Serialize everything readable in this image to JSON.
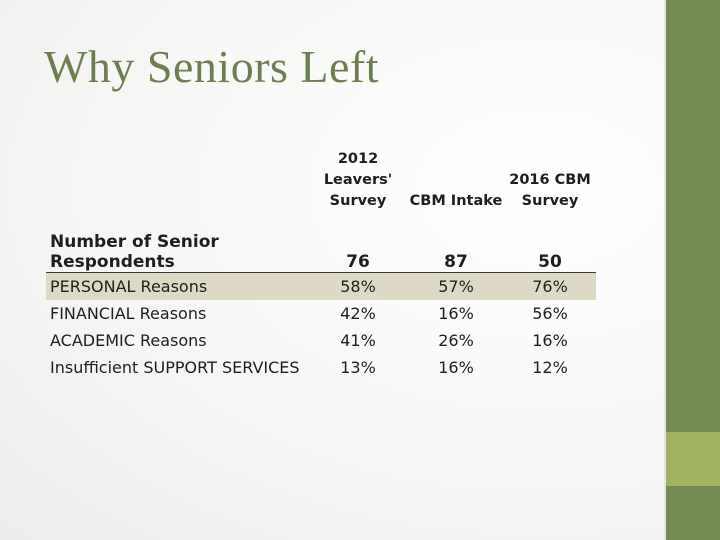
{
  "slide": {
    "title": "Why Seniors Left",
    "colors": {
      "title": "#6d7f50",
      "sidebar": "#748a52",
      "sidebar_accent": "#a1b35e",
      "row_highlight": "#ddd9c4"
    }
  },
  "table": {
    "headers": [
      "",
      "2012\nLeavers'\nSurvey",
      "CBM Intake",
      "2016 CBM\nSurvey"
    ],
    "respondents": {
      "label": "Number of Senior Respondents",
      "values": [
        "76",
        "87",
        "50"
      ]
    },
    "rows": [
      {
        "label": "PERSONAL Reasons",
        "values": [
          "58%",
          "57%",
          "76%"
        ],
        "highlighted": true
      },
      {
        "label": "FINANCIAL Reasons",
        "values": [
          "42%",
          "16%",
          "56%"
        ],
        "highlighted": false
      },
      {
        "label": "ACADEMIC Reasons",
        "values": [
          "41%",
          "26%",
          "16%"
        ],
        "highlighted": false
      },
      {
        "label": "Insufficient SUPPORT SERVICES",
        "values": [
          "13%",
          "16%",
          "12%"
        ],
        "highlighted": false
      }
    ]
  }
}
